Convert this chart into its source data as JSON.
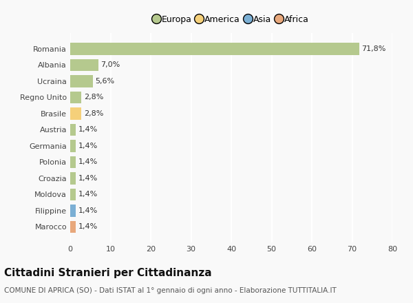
{
  "categories": [
    "Marocco",
    "Filippine",
    "Moldova",
    "Croazia",
    "Polonia",
    "Germania",
    "Austria",
    "Brasile",
    "Regno Unito",
    "Ucraina",
    "Albania",
    "Romania"
  ],
  "values": [
    1.4,
    1.4,
    1.4,
    1.4,
    1.4,
    1.4,
    1.4,
    2.8,
    2.8,
    5.6,
    7.0,
    71.8
  ],
  "labels": [
    "1,4%",
    "1,4%",
    "1,4%",
    "1,4%",
    "1,4%",
    "1,4%",
    "1,4%",
    "2,8%",
    "2,8%",
    "5,6%",
    "7,0%",
    "71,8%"
  ],
  "colors": [
    "#e8a87c",
    "#7bafd4",
    "#b5c98e",
    "#b5c98e",
    "#b5c98e",
    "#b5c98e",
    "#b5c98e",
    "#f5d07a",
    "#b5c98e",
    "#b5c98e",
    "#b5c98e",
    "#b5c98e"
  ],
  "legend_labels": [
    "Europa",
    "America",
    "Asia",
    "Africa"
  ],
  "legend_colors": [
    "#b5c98e",
    "#f5d07a",
    "#7bafd4",
    "#e8a87c"
  ],
  "title": "Cittadini Stranieri per Cittadinanza",
  "subtitle": "COMUNE DI APRICA (SO) - Dati ISTAT al 1° gennaio di ogni anno - Elaborazione TUTTITALIA.IT",
  "xlim": [
    0,
    80
  ],
  "xticks": [
    0,
    10,
    20,
    30,
    40,
    50,
    60,
    70,
    80
  ],
  "background_color": "#f9f9f9",
  "grid_color": "#ffffff",
  "bar_height": 0.75,
  "title_fontsize": 11,
  "subtitle_fontsize": 7.5,
  "label_fontsize": 8,
  "tick_fontsize": 8,
  "legend_fontsize": 9
}
